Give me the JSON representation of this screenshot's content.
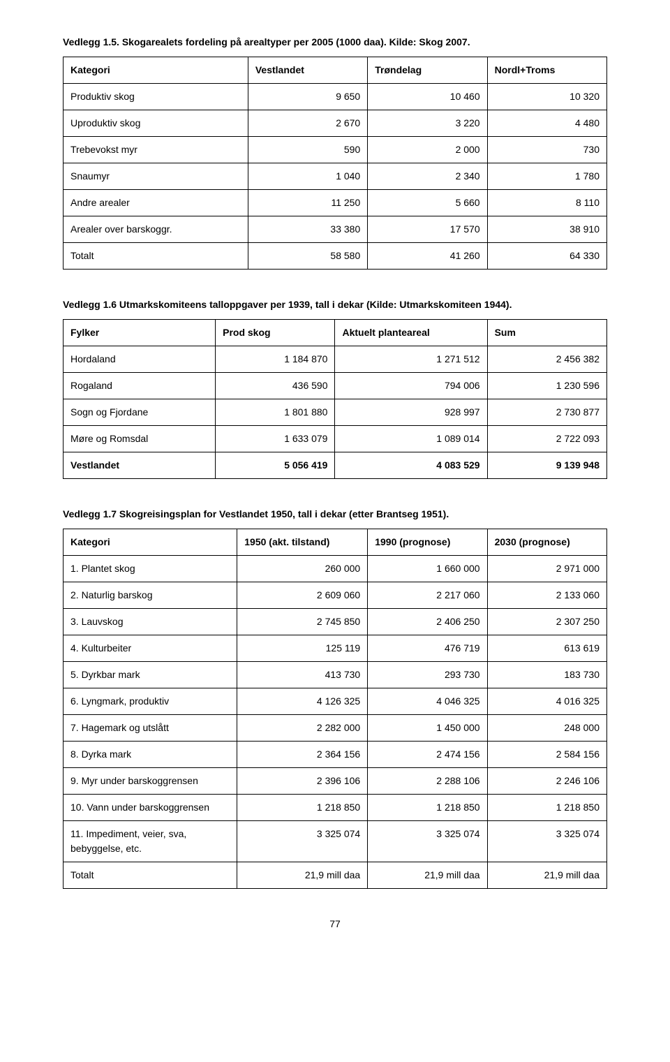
{
  "section1": {
    "heading": "Vedlegg 1.5. Skogarealets fordeling på arealtyper per 2005 (1000 daa). Kilde: Skog 2007.",
    "columns": [
      "Kategori",
      "Vestlandet",
      "Trøndelag",
      "Nordl+Troms"
    ],
    "rows": [
      {
        "label": "Produktiv skog",
        "vals": [
          "9 650",
          "10 460",
          "10 320"
        ],
        "bold": false
      },
      {
        "label": "Uproduktiv skog",
        "vals": [
          "2 670",
          "3 220",
          "4 480"
        ],
        "bold": false
      },
      {
        "label": "Trebevokst myr",
        "vals": [
          "590",
          "2 000",
          "730"
        ],
        "bold": false
      },
      {
        "label": "Snaumyr",
        "vals": [
          "1 040",
          "2 340",
          "1 780"
        ],
        "bold": false
      },
      {
        "label": "Andre arealer",
        "vals": [
          "11 250",
          "5 660",
          "8 110"
        ],
        "bold": false
      },
      {
        "label": "Arealer over barskoggr.",
        "vals": [
          "33 380",
          "17 570",
          "38 910"
        ],
        "bold": false
      },
      {
        "label": "Totalt",
        "vals": [
          "58 580",
          "41 260",
          "64 330"
        ],
        "bold": false
      }
    ]
  },
  "section2": {
    "heading": "Vedlegg 1.6 Utmarkskomiteens talloppgaver per 1939, tall i dekar (Kilde: Utmarkskomiteen 1944).",
    "columns": [
      "Fylker",
      "Prod skog",
      "Aktuelt planteareal",
      "Sum"
    ],
    "rows": [
      {
        "label": "Hordaland",
        "vals": [
          "1 184 870",
          "1 271 512",
          "2 456 382"
        ],
        "bold": false
      },
      {
        "label": "Rogaland",
        "vals": [
          "436 590",
          "794 006",
          "1 230 596"
        ],
        "bold": false
      },
      {
        "label": "Sogn og Fjordane",
        "vals": [
          "1 801 880",
          "928 997",
          "2 730 877"
        ],
        "bold": false
      },
      {
        "label": "Møre og Romsdal",
        "vals": [
          "1 633 079",
          "1 089 014",
          "2 722 093"
        ],
        "bold": false
      },
      {
        "label": "Vestlandet",
        "vals": [
          "5 056 419",
          "4 083 529",
          "9 139 948"
        ],
        "bold": true
      }
    ]
  },
  "section3": {
    "heading": "Vedlegg 1.7 Skogreisingsplan for Vestlandet 1950, tall i dekar (etter Brantseg 1951).",
    "columns": [
      "Kategori",
      "1950 (akt. tilstand)",
      "1990 (prognose)",
      "2030 (prognose)"
    ],
    "rows": [
      {
        "label": "1. Plantet skog",
        "vals": [
          "260 000",
          "1 660 000",
          "2 971 000"
        ],
        "bold": false
      },
      {
        "label": "2. Naturlig barskog",
        "vals": [
          "2 609 060",
          "2 217 060",
          "2 133 060"
        ],
        "bold": false
      },
      {
        "label": "3. Lauvskog",
        "vals": [
          "2 745 850",
          "2 406 250",
          "2 307 250"
        ],
        "bold": false
      },
      {
        "label": "4. Kulturbeiter",
        "vals": [
          "125 119",
          "476 719",
          "613 619"
        ],
        "bold": false
      },
      {
        "label": "5. Dyrkbar mark",
        "vals": [
          "413 730",
          "293 730",
          "183 730"
        ],
        "bold": false
      },
      {
        "label": "6. Lyngmark, produktiv",
        "vals": [
          "4 126 325",
          "4 046 325",
          "4 016 325"
        ],
        "bold": false
      },
      {
        "label": "7. Hagemark og utslått",
        "vals": [
          "2 282 000",
          "1 450 000",
          "248 000"
        ],
        "bold": false
      },
      {
        "label": "8. Dyrka mark",
        "vals": [
          "2 364 156",
          "2 474 156",
          "2 584 156"
        ],
        "bold": false
      },
      {
        "label": "9. Myr under barskoggrensen",
        "vals": [
          "2 396 106",
          "2 288 106",
          "2 246 106"
        ],
        "bold": false
      },
      {
        "label": "10. Vann under barskoggrensen",
        "vals": [
          "1 218 850",
          "1 218 850",
          "1 218 850"
        ],
        "bold": false
      },
      {
        "label": "11. Impediment, veier, sva, bebyggelse, etc.",
        "vals": [
          "3 325 074",
          "3 325 074",
          "3 325 074"
        ],
        "bold": false
      },
      {
        "label": "Totalt",
        "vals": [
          "21,9 mill daa",
          "21,9 mill daa",
          "21,9 mill daa"
        ],
        "bold": false
      }
    ]
  },
  "pageNumber": "77",
  "colWidths": {
    "t1": [
      "34%",
      "22%",
      "22%",
      "22%"
    ],
    "t2": [
      "28%",
      "22%",
      "28%",
      "22%"
    ],
    "t3": [
      "32%",
      "24%",
      "22%",
      "22%"
    ]
  }
}
